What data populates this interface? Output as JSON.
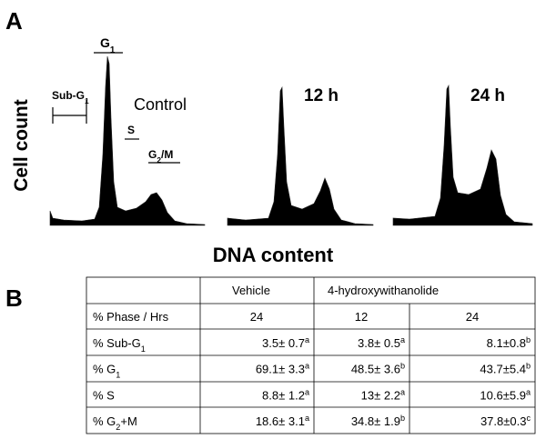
{
  "panel_a": {
    "label": "A",
    "y_label": "Cell count",
    "x_label": "DNA content",
    "gates": {
      "g1": [
        {
          "text": "G"
        },
        {
          "sub": "1"
        }
      ],
      "sub_g1": [
        {
          "text": "Sub-G"
        },
        {
          "sub": "1"
        }
      ],
      "s": [
        {
          "text": "S"
        }
      ],
      "g2m": [
        {
          "text": "G"
        },
        {
          "sub": "2"
        },
        {
          "text": "/M"
        }
      ]
    },
    "histograms": [
      "Control",
      "12 h",
      "24 h"
    ]
  },
  "panel_b": {
    "label": "B",
    "table": {
      "header": [
        "Vehicle",
        "4-hydroxywithanolide"
      ],
      "subheader": {
        "label": "% Phase / Hrs",
        "values": [
          "24",
          "12",
          "24"
        ]
      },
      "rows": [
        {
          "label": [
            {
              "text": "% Sub-G"
            },
            {
              "sub": "1"
            }
          ],
          "cells": [
            [
              {
                "text": "3.5± 0.7"
              },
              {
                "sup": "a"
              }
            ],
            [
              {
                "text": "3.8± 0.5"
              },
              {
                "sup": "a"
              }
            ],
            [
              {
                "text": "8.1±0.8"
              },
              {
                "sup": "b"
              }
            ]
          ]
        },
        {
          "label": [
            {
              "text": "% G"
            },
            {
              "sub": "1"
            }
          ],
          "cells": [
            [
              {
                "text": "69.1± 3.3"
              },
              {
                "sup": "a"
              }
            ],
            [
              {
                "text": "48.5± 3.6"
              },
              {
                "sup": "b"
              }
            ],
            [
              {
                "text": "43.7±5.4"
              },
              {
                "sup": "b"
              }
            ]
          ]
        },
        {
          "label": [
            {
              "text": "% S"
            }
          ],
          "cells": [
            [
              {
                "text": "8.8± 1.2"
              },
              {
                "sup": "a"
              }
            ],
            [
              {
                "text": "13± 2.2"
              },
              {
                "sup": "a"
              }
            ],
            [
              {
                "text": "10.6±5.9"
              },
              {
                "sup": "a"
              }
            ]
          ]
        },
        {
          "label": [
            {
              "text": "% G"
            },
            {
              "sub": "2"
            },
            {
              "text": "+M"
            }
          ],
          "cells": [
            [
              {
                "text": "18.6± 3.1"
              },
              {
                "sup": "a"
              }
            ],
            [
              {
                "text": "34.8± 1.9"
              },
              {
                "sup": "b"
              }
            ],
            [
              {
                "text": "37.8±0.3"
              },
              {
                "sup": "c"
              }
            ]
          ]
        }
      ]
    }
  }
}
